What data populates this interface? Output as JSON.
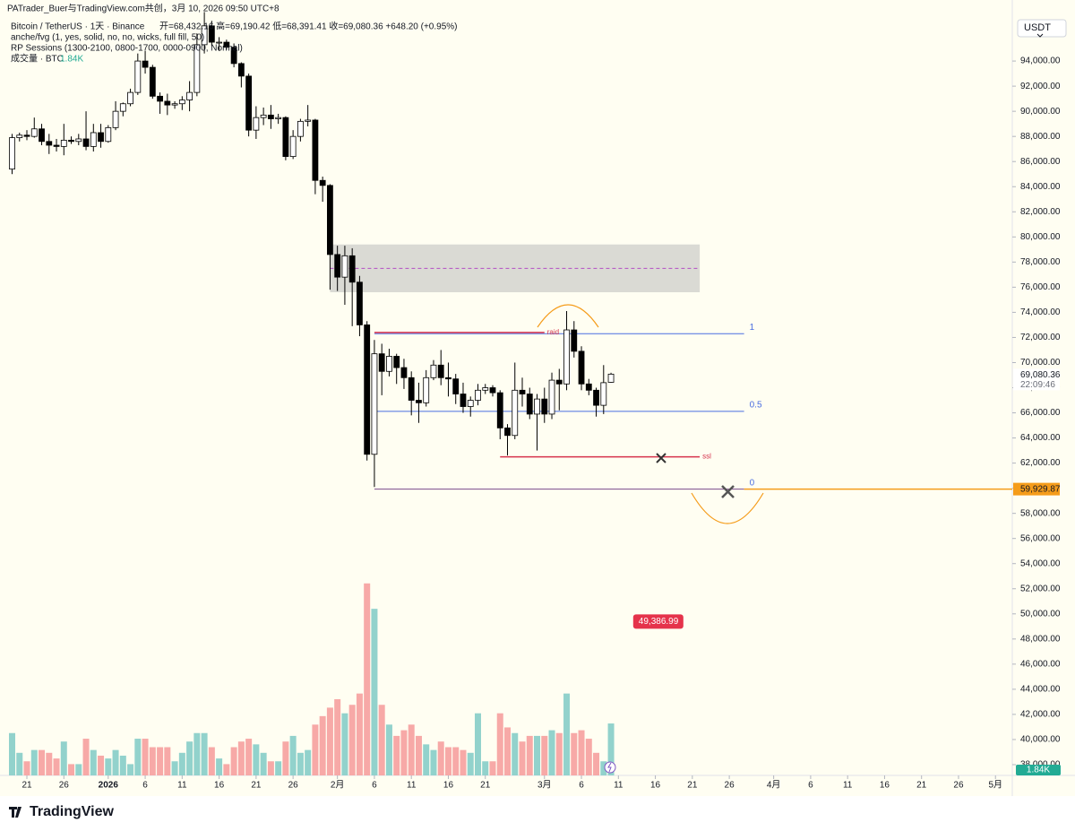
{
  "chart_data": {
    "type": "candlestick",
    "header": {
      "watermark": "PATrader_Buer与TradingView.com共创，3月 10, 2026 09:50 UTC+8",
      "symbol": "Bitcoin / TetherUS · 1天 · Binance",
      "ohlc": "开=68,432.16  高=69,190.42  低=68,391.41  收=69,080.36  +648.20 (+0.95%)",
      "indicators": [
        "anche/fvg (1, yes, solid, no, no, wicks, full fill, 50)",
        "RP Sessions (1300-2100, 0800-1700, 0000-0900, Normal)"
      ]
    },
    "currency": "USDT",
    "brand": "TradingView",
    "x": [
      "12-19",
      "12-20",
      "12-21",
      "12-22",
      "12-23",
      "12-24",
      "12-25",
      "12-26",
      "12-27",
      "12-28",
      "12-29",
      "12-30",
      "12-31",
      "01-01",
      "01-02",
      "01-03",
      "01-04",
      "01-05",
      "01-06",
      "01-07",
      "01-08",
      "01-09",
      "01-10",
      "01-11",
      "01-12",
      "01-13",
      "01-14",
      "01-15",
      "01-16",
      "01-17",
      "01-18",
      "01-19",
      "01-20",
      "01-21",
      "01-22",
      "01-23",
      "01-24",
      "01-25",
      "01-26",
      "01-27",
      "01-28",
      "01-29",
      "01-30",
      "01-31",
      "02-01",
      "02-02",
      "02-03",
      "02-04",
      "02-05",
      "02-06",
      "02-07",
      "02-08",
      "02-09",
      "02-10",
      "02-11",
      "02-12",
      "02-13",
      "02-14",
      "02-15",
      "02-16",
      "02-17",
      "02-18",
      "02-19",
      "02-20",
      "02-21",
      "02-22",
      "02-23",
      "02-24",
      "02-25",
      "02-26",
      "02-27",
      "02-28",
      "03-01",
      "03-02",
      "03-03",
      "03-04",
      "03-05",
      "03-06",
      "03-07",
      "03-08",
      "03-09",
      "03-10"
    ],
    "candles": {
      "open": [
        85400,
        87900,
        88100,
        88000,
        88600,
        87600,
        87300,
        87200,
        87700,
        87600,
        87800,
        87200,
        88300,
        87600,
        88700,
        90000,
        90600,
        91500,
        94000,
        93500,
        91200,
        90800,
        90500,
        90600,
        90900,
        91500,
        95300,
        96800,
        95500,
        95500,
        95100,
        93800,
        92800,
        88500,
        89500,
        89700,
        89400,
        89500,
        86400,
        88000,
        89200,
        89300,
        84500,
        84100,
        78600,
        76800,
        78500,
        76400,
        73000,
        62700,
        70700,
        69300,
        70500,
        69600,
        68800,
        67000,
        66800,
        68800,
        69800,
        68800,
        68700,
        67500,
        66500,
        67000,
        67800,
        68000,
        67600,
        64800,
        64200,
        67800,
        67500,
        65900,
        67100,
        65900,
        68600,
        68300,
        72600,
        70900,
        68300,
        67800,
        66600,
        68432.16
      ],
      "high": [
        88200,
        88300,
        88500,
        89500,
        89000,
        88200,
        87800,
        89000,
        88000,
        88200,
        90000,
        89000,
        89000,
        88900,
        90800,
        90700,
        91800,
        94600,
        94800,
        93700,
        91500,
        91400,
        90800,
        91200,
        92400,
        96200,
        97900,
        97200,
        95900,
        95700,
        95400,
        93900,
        93000,
        90400,
        90300,
        90500,
        89800,
        89600,
        88500,
        89400,
        90500,
        89400,
        84800,
        84200,
        79300,
        79300,
        79100,
        76900,
        73300,
        71800,
        71500,
        71100,
        70700,
        70300,
        69300,
        68400,
        69400,
        70200,
        71000,
        70000,
        69100,
        68400,
        67300,
        68300,
        68300,
        68200,
        67800,
        65100,
        70000,
        68800,
        68000,
        67500,
        68000,
        69200,
        69500,
        74100,
        73300,
        71300,
        68700,
        68000,
        69800,
        69190.42
      ],
      "low": [
        85000,
        87600,
        87700,
        87900,
        87300,
        86600,
        86800,
        86500,
        87400,
        87300,
        86900,
        86800,
        87100,
        87500,
        88500,
        89600,
        90400,
        91300,
        93000,
        91000,
        89800,
        89700,
        90200,
        90100,
        90000,
        91200,
        94600,
        95200,
        94800,
        94900,
        93500,
        91900,
        88000,
        87800,
        88900,
        88600,
        89000,
        86100,
        86200,
        87600,
        88800,
        83400,
        82800,
        75800,
        75700,
        74600,
        72900,
        72100,
        62200,
        60100,
        67400,
        68900,
        68300,
        67900,
        65800,
        65200,
        66500,
        68600,
        68200,
        67300,
        66700,
        66000,
        65700,
        66600,
        67500,
        67300,
        63900,
        62600,
        63900,
        66500,
        65500,
        63000,
        65200,
        65500,
        66200,
        67800,
        70400,
        67800,
        67400,
        65700,
        65900,
        68391.41
      ],
      "close": [
        87900,
        88100,
        88000,
        88600,
        87600,
        87300,
        87200,
        87700,
        87600,
        87800,
        87200,
        88300,
        87600,
        88700,
        90000,
        90600,
        91500,
        94000,
        93500,
        91200,
        90800,
        90500,
        90600,
        90900,
        91500,
        95300,
        96800,
        95500,
        95500,
        95100,
        93800,
        92800,
        88500,
        89500,
        89700,
        89400,
        89500,
        86400,
        88000,
        89200,
        89300,
        84500,
        84100,
        78600,
        76800,
        78500,
        76400,
        73000,
        62700,
        70700,
        69300,
        70500,
        69600,
        68800,
        67000,
        66800,
        68800,
        69800,
        68800,
        68700,
        67500,
        66500,
        67000,
        67800,
        68000,
        67600,
        64800,
        64200,
        67800,
        67500,
        65900,
        67100,
        65900,
        68600,
        68300,
        72600,
        70900,
        68300,
        67800,
        66600,
        68400,
        69080.36
      ],
      "up_fill": "#ffffff",
      "down_fill": "#000000",
      "stroke": "#000000"
    },
    "volume": {
      "name": "成交量 · BTC",
      "last_label": "1.84K",
      "values": [
        1.5,
        0.8,
        0.5,
        0.9,
        0.9,
        0.8,
        0.6,
        1.2,
        0.4,
        0.4,
        1.3,
        0.9,
        0.7,
        0.6,
        0.9,
        0.7,
        0.4,
        1.3,
        1.3,
        1.0,
        1.0,
        1.0,
        0.5,
        0.8,
        1.2,
        1.5,
        1.5,
        1.0,
        0.6,
        0.4,
        1.0,
        1.2,
        1.3,
        1.1,
        0.8,
        0.5,
        0.5,
        1.2,
        1.4,
        0.8,
        0.9,
        1.8,
        2.1,
        2.4,
        2.7,
        2.2,
        2.5,
        2.9,
        6.8,
        5.9,
        2.5,
        1.8,
        1.4,
        1.6,
        1.8,
        1.4,
        1.1,
        0.9,
        1.2,
        1.0,
        1.0,
        0.9,
        0.8,
        2.2,
        0.5,
        0.5,
        2.2,
        1.7,
        1.5,
        1.2,
        1.4,
        1.4,
        1.4,
        1.6,
        1.5,
        2.9,
        1.5,
        1.6,
        1.3,
        0.8,
        0.5,
        1.84
      ],
      "lim": [
        0,
        27
      ],
      "up_color": "#92d2cc",
      "down_color": "#f7a9a7",
      "label_color": "#22ab94"
    },
    "xlim": [
      "12-17",
      "05-04"
    ],
    "xticks": [
      {
        "value": "12-21",
        "label": "21"
      },
      {
        "value": "12-26",
        "label": "26"
      },
      {
        "value": "01-01",
        "label": "2026"
      },
      {
        "value": "01-06",
        "label": "6"
      },
      {
        "value": "01-11",
        "label": "11"
      },
      {
        "value": "01-16",
        "label": "16"
      },
      {
        "value": "01-21",
        "label": "21"
      },
      {
        "value": "01-26",
        "label": "26"
      },
      {
        "value": "02-01",
        "label": "2月"
      },
      {
        "value": "02-06",
        "label": "6"
      },
      {
        "value": "02-11",
        "label": "11"
      },
      {
        "value": "02-16",
        "label": "16"
      },
      {
        "value": "02-21",
        "label": "21"
      },
      {
        "value": "03-01",
        "label": "3月"
      },
      {
        "value": "03-06",
        "label": "6"
      },
      {
        "value": "03-11",
        "label": "11"
      },
      {
        "value": "03-16",
        "label": "16"
      },
      {
        "value": "03-21",
        "label": "21"
      },
      {
        "value": "03-26",
        "label": "26"
      },
      {
        "value": "04-01",
        "label": "4月"
      },
      {
        "value": "04-06",
        "label": "6"
      },
      {
        "value": "04-11",
        "label": "11"
      },
      {
        "value": "04-16",
        "label": "16"
      },
      {
        "value": "04-21",
        "label": "21"
      },
      {
        "value": "04-26",
        "label": "26"
      },
      {
        "value": "05-01",
        "label": "5月"
      }
    ],
    "ylim": [
      37000,
      99000
    ],
    "yticks": [
      {
        "value": 38000,
        "label": "38,000.00"
      },
      {
        "value": 40000,
        "label": "40,000.00"
      },
      {
        "value": 42000,
        "label": "42,000.00"
      },
      {
        "value": 44000,
        "label": "44,000.00"
      },
      {
        "value": 46000,
        "label": "46,000.00"
      },
      {
        "value": 48000,
        "label": "48,000.00"
      },
      {
        "value": 50000,
        "label": "50,000.00"
      },
      {
        "value": 52000,
        "label": "52,000.00"
      },
      {
        "value": 54000,
        "label": "54,000.00"
      },
      {
        "value": 56000,
        "label": "56,000.00"
      },
      {
        "value": 58000,
        "label": "58,000.00"
      },
      {
        "value": 60000,
        "label": "60,000.00"
      },
      {
        "value": 62000,
        "label": "62,000.00"
      },
      {
        "value": 64000,
        "label": "64,000.00"
      },
      {
        "value": 66000,
        "label": "66,000.00"
      },
      {
        "value": 68000,
        "label": "68,000.00"
      },
      {
        "value": 70000,
        "label": "70,000.00"
      },
      {
        "value": 72000,
        "label": "72,000.00"
      },
      {
        "value": 74000,
        "label": "74,000.00"
      },
      {
        "value": 76000,
        "label": "76,000.00"
      },
      {
        "value": 78000,
        "label": "78,000.00"
      },
      {
        "value": 80000,
        "label": "80,000.00"
      },
      {
        "value": 82000,
        "label": "82,000.00"
      },
      {
        "value": 84000,
        "label": "84,000.00"
      },
      {
        "value": 86000,
        "label": "86,000.00"
      },
      {
        "value": 88000,
        "label": "88,000.00"
      },
      {
        "value": 90000,
        "label": "90,000.00"
      },
      {
        "value": 92000,
        "label": "92,000.00"
      },
      {
        "value": 94000,
        "label": "94,000.00"
      }
    ],
    "zone": {
      "from": "01-31",
      "to": "03-22",
      "low": 75600,
      "high": 79400,
      "mid": 77500,
      "color": "#d6d6d0",
      "mid_color": "#b34fc4"
    },
    "fib": {
      "from": "02-06",
      "to": "03-28",
      "color": "#4a6ee0",
      "zero_color": "#7b4a8c",
      "levels": [
        {
          "level": 1,
          "price": 72300
        },
        {
          "level": 0.5,
          "price": 66115
        },
        {
          "level": 0,
          "price": 59929.87
        }
      ]
    },
    "lines": [
      {
        "label": "raid",
        "price": 72400,
        "from": "02-06",
        "to": "03-01",
        "color": "#d6334d"
      },
      {
        "label": "ssl",
        "price": 62500,
        "from": "02-23",
        "to": "03-22",
        "color": "#d6334d"
      }
    ],
    "price_labels": [
      {
        "value": 69080.36,
        "label": "69,080.36",
        "sub": "22:09:46",
        "bg": "#ffffff",
        "fg": "#131722"
      },
      {
        "value": 59929.87,
        "label": "59,929.87",
        "bg": "#f59c1a",
        "fg": "#131722",
        "line": "#f59c1a"
      },
      {
        "value": 49386.99,
        "label": "49,386.99",
        "bg": "#e5334b",
        "fg": "#ffffff",
        "at": "03-13"
      }
    ]
  }
}
